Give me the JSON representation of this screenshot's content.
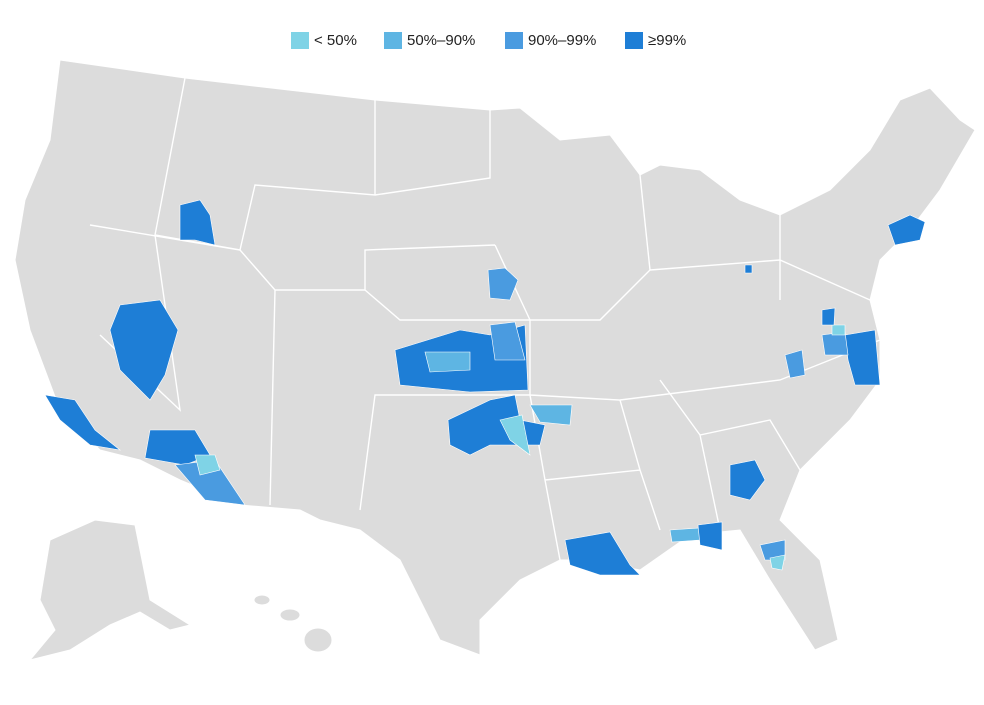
{
  "legend": {
    "items": [
      {
        "label": "< 50%",
        "color": "#7fd3e6"
      },
      {
        "label": "50%–90%",
        "color": "#5eb5e3"
      },
      {
        "label": "90%–99%",
        "color": "#4a9be0"
      },
      {
        "label": "≥99%",
        "color": "#1e7ed6"
      }
    ]
  }
}
